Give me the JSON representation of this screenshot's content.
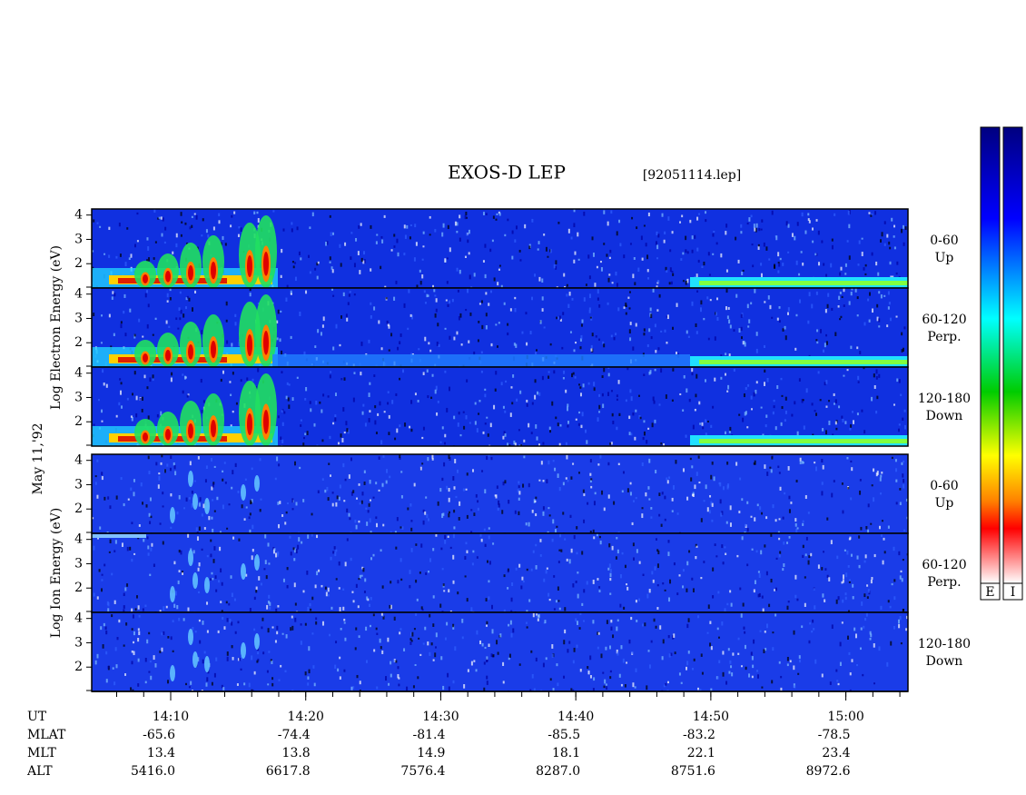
{
  "chart_data": {
    "type": "spectrogram",
    "title": "EXOS-D LEP",
    "file": "[92051114.lep]",
    "date_label": "May 11,'92",
    "groups": [
      {
        "ylabel": "Log  Electron  Energy (eV)",
        "colorbar": "E",
        "panels": [
          {
            "label": "0-60",
            "sublabel": "Up"
          },
          {
            "label": "60-120",
            "sublabel": "Perp."
          },
          {
            "label": "120-180",
            "sublabel": "Down"
          }
        ]
      },
      {
        "ylabel": "Log  Ion  Energy (eV)",
        "colorbar": "I",
        "panels": [
          {
            "label": "0-60",
            "sublabel": "Up"
          },
          {
            "label": "60-120",
            "sublabel": "Perp."
          },
          {
            "label": "120-180",
            "sublabel": "Down"
          }
        ]
      }
    ],
    "ylim": [
      1,
      4.25
    ],
    "yticks": [
      2,
      3,
      4
    ],
    "xlim": [
      4.15,
      64.6
    ],
    "xticks": [
      {
        "value": 10,
        "label": "14:10"
      },
      {
        "value": 20,
        "label": "14:20"
      },
      {
        "value": 30,
        "label": "14:30"
      },
      {
        "value": 40,
        "label": "14:40"
      },
      {
        "value": 50,
        "label": "14:50"
      },
      {
        "value": 60,
        "label": "15:00"
      }
    ],
    "ephemeris": {
      "labels": [
        "UT",
        "MLAT",
        "MLT",
        "ALT"
      ],
      "rows": [
        [
          "-65.6",
          "-74.4",
          "-81.4",
          "-85.5",
          "-83.2",
          "-78.5"
        ],
        [
          "13.4",
          "13.8",
          "14.9",
          "18.1",
          "22.1",
          "23.4"
        ],
        [
          "5416.0",
          "6617.8",
          "7576.4",
          "8287.0",
          "8751.6",
          "8972.6"
        ]
      ]
    }
  }
}
